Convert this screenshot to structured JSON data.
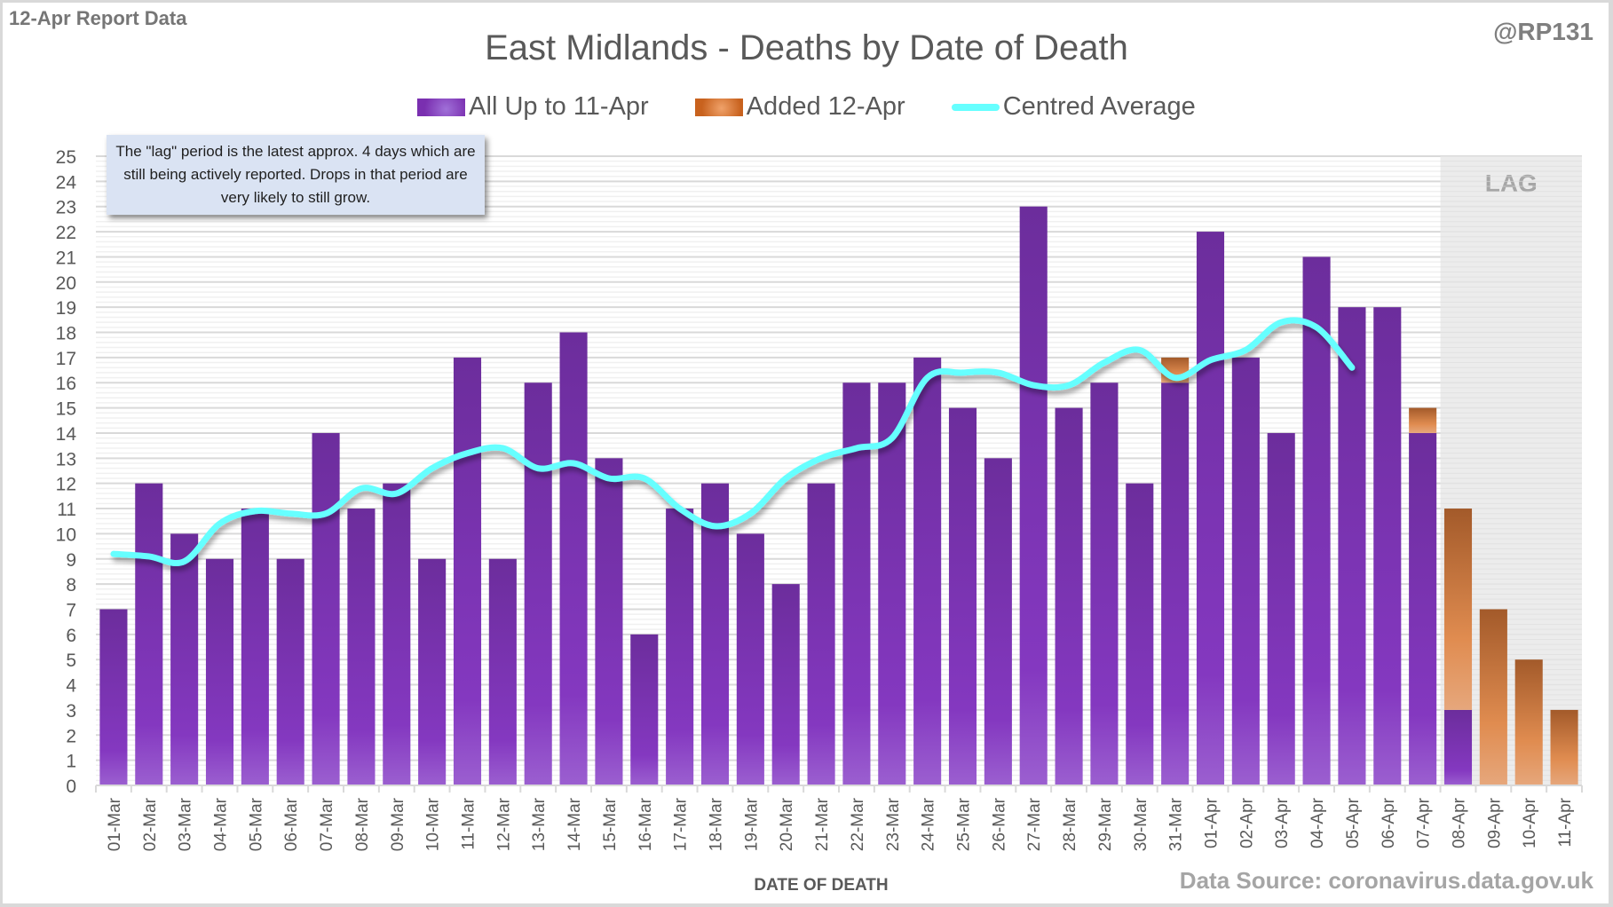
{
  "header": {
    "report_label": "12-Apr Report Data",
    "handle": "@RP131",
    "source": "Data Source: coronavirus.data.gov.uk"
  },
  "annotation": {
    "note": "The \"lag\" period is the latest approx. 4 days which are still being actively reported. Drops in that period are very likely to still grow.",
    "lag_label": "LAG"
  },
  "colors": {
    "previous": "#7a2fb0",
    "added": "#d9793a",
    "average": "#66ffff",
    "lag_shade": "#e9e9e9"
  },
  "chart_data": {
    "type": "bar",
    "stacked": true,
    "title": "East Midlands - Deaths by Date of Death",
    "xlabel": "DATE OF DEATH",
    "ylabel": "",
    "ylim": [
      0,
      25
    ],
    "yticks": [
      0,
      1,
      2,
      3,
      4,
      5,
      6,
      7,
      8,
      9,
      10,
      11,
      12,
      13,
      14,
      15,
      16,
      17,
      18,
      19,
      20,
      21,
      22,
      23,
      24,
      25
    ],
    "grid": true,
    "legend_position": "top-center",
    "categories": [
      "01-Mar",
      "02-Mar",
      "03-Mar",
      "04-Mar",
      "05-Mar",
      "06-Mar",
      "07-Mar",
      "08-Mar",
      "09-Mar",
      "10-Mar",
      "11-Mar",
      "12-Mar",
      "13-Mar",
      "14-Mar",
      "15-Mar",
      "16-Mar",
      "17-Mar",
      "18-Mar",
      "19-Mar",
      "20-Mar",
      "21-Mar",
      "22-Mar",
      "23-Mar",
      "24-Mar",
      "25-Mar",
      "26-Mar",
      "27-Mar",
      "28-Mar",
      "29-Mar",
      "30-Mar",
      "31-Mar",
      "01-Apr",
      "02-Apr",
      "03-Apr",
      "04-Apr",
      "05-Apr",
      "06-Apr",
      "07-Apr",
      "08-Apr",
      "09-Apr",
      "10-Apr",
      "11-Apr"
    ],
    "series": [
      {
        "name": "All Up to 11-Apr",
        "kind": "bar",
        "values": [
          7,
          12,
          10,
          9,
          11,
          9,
          14,
          11,
          12,
          9,
          17,
          9,
          16,
          18,
          13,
          6,
          11,
          12,
          10,
          8,
          12,
          16,
          16,
          17,
          15,
          13,
          23,
          15,
          16,
          12,
          16,
          22,
          17,
          14,
          21,
          19,
          19,
          14,
          3,
          0,
          0,
          0
        ]
      },
      {
        "name": "Added 12-Apr",
        "kind": "bar",
        "values": [
          0,
          0,
          0,
          0,
          0,
          0,
          0,
          0,
          0,
          0,
          0,
          0,
          0,
          0,
          0,
          0,
          0,
          0,
          0,
          0,
          0,
          0,
          0,
          0,
          0,
          0,
          0,
          0,
          0,
          0,
          1,
          0,
          0,
          0,
          0,
          0,
          0,
          1,
          8,
          7,
          5,
          3
        ]
      },
      {
        "name": "Centred Average",
        "kind": "line",
        "values": [
          9.2,
          9.1,
          8.9,
          10.4,
          10.9,
          10.8,
          10.8,
          11.8,
          11.6,
          12.6,
          13.2,
          13.4,
          12.6,
          12.8,
          12.2,
          12.2,
          11.0,
          10.3,
          10.8,
          12.2,
          13.0,
          13.4,
          13.8,
          16.2,
          16.4,
          16.4,
          15.9,
          15.9,
          16.8,
          17.3,
          16.2,
          16.9,
          17.3,
          18.4,
          18.2,
          16.6,
          null,
          null,
          null,
          null,
          null,
          null
        ]
      }
    ],
    "lag_start": "08-Apr",
    "lag_end": "11-Apr"
  },
  "legend": {
    "items": [
      {
        "label": "All Up to 11-Apr",
        "swatch": "purple"
      },
      {
        "label": "Added 12-Apr",
        "swatch": "orange"
      },
      {
        "label": "Centred Average",
        "swatch": "line"
      }
    ]
  }
}
